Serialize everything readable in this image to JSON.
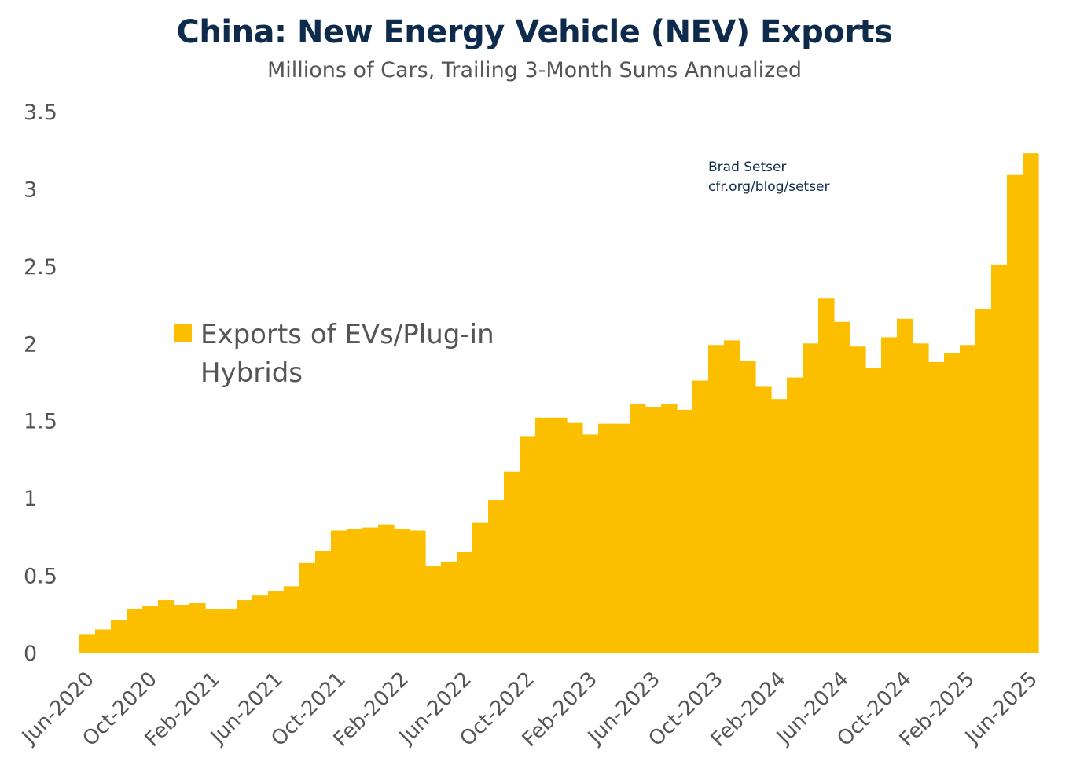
{
  "chart_data": {
    "type": "bar",
    "title": "China: New Energy Vehicle (NEV) Exports",
    "subtitle": "Millions of Cars, Trailing 3-Month Sums Annualized",
    "xlabel": "",
    "ylabel": "",
    "ylim": [
      0,
      3.5
    ],
    "yticks": [
      0,
      0.5,
      1,
      1.5,
      2,
      2.5,
      3,
      3.5
    ],
    "ytick_labels": [
      "0",
      "0.5",
      "1",
      "1.5",
      "2",
      "2.5",
      "3",
      "3.5"
    ],
    "categories": [
      "Jun-2020",
      "Jul-2020",
      "Aug-2020",
      "Sep-2020",
      "Oct-2020",
      "Nov-2020",
      "Dec-2020",
      "Jan-2021",
      "Feb-2021",
      "Mar-2021",
      "Apr-2021",
      "May-2021",
      "Jun-2021",
      "Jul-2021",
      "Aug-2021",
      "Sep-2021",
      "Oct-2021",
      "Nov-2021",
      "Dec-2021",
      "Jan-2022",
      "Feb-2022",
      "Mar-2022",
      "Apr-2022",
      "May-2022",
      "Jun-2022",
      "Jul-2022",
      "Aug-2022",
      "Sep-2022",
      "Oct-2022",
      "Nov-2022",
      "Dec-2022",
      "Jan-2023",
      "Feb-2023",
      "Mar-2023",
      "Apr-2023",
      "May-2023",
      "Jun-2023",
      "Jul-2023",
      "Aug-2023",
      "Sep-2023",
      "Oct-2023",
      "Nov-2023",
      "Dec-2023",
      "Jan-2024",
      "Feb-2024",
      "Mar-2024",
      "Apr-2024",
      "May-2024",
      "Jun-2024",
      "Jul-2024",
      "Aug-2024",
      "Sep-2024",
      "Oct-2024",
      "Nov-2024",
      "Dec-2024",
      "Jan-2025",
      "Feb-2025",
      "Mar-2025",
      "Apr-2025",
      "May-2025",
      "Jun-2025"
    ],
    "xtick_labels": [
      "Jun-2020",
      "Oct-2020",
      "Feb-2021",
      "Jun-2021",
      "Oct-2021",
      "Feb-2022",
      "Jun-2022",
      "Oct-2022",
      "Feb-2023",
      "Jun-2023",
      "Oct-2023",
      "Feb-2024",
      "Jun-2024",
      "Oct-2024",
      "Feb-2025",
      "Jun-2025"
    ],
    "series": [
      {
        "name": "Exports of EVs/Plug-in Hybrids",
        "color": "#fbbf00",
        "values": [
          0.12,
          0.15,
          0.21,
          0.28,
          0.3,
          0.34,
          0.31,
          0.32,
          0.28,
          0.28,
          0.34,
          0.37,
          0.4,
          0.43,
          0.58,
          0.66,
          0.79,
          0.8,
          0.81,
          0.83,
          0.8,
          0.79,
          0.56,
          0.59,
          0.65,
          0.84,
          0.99,
          1.17,
          1.4,
          1.52,
          1.52,
          1.49,
          1.41,
          1.48,
          1.48,
          1.61,
          1.59,
          1.61,
          1.57,
          1.76,
          1.99,
          2.02,
          1.89,
          1.72,
          1.64,
          1.78,
          2.0,
          2.29,
          2.14,
          1.98,
          1.84,
          2.04,
          2.16,
          2.0,
          1.88,
          1.94,
          1.99,
          2.22,
          2.51,
          3.09,
          3.23
        ]
      }
    ],
    "legend": {
      "placement": "center-left",
      "label_line1": "Exports of EVs/Plug-in",
      "label_line2": "Hybrids"
    },
    "annotations": [
      "Brad Setser",
      "cfr.org/blog/setser"
    ],
    "grid": false
  }
}
